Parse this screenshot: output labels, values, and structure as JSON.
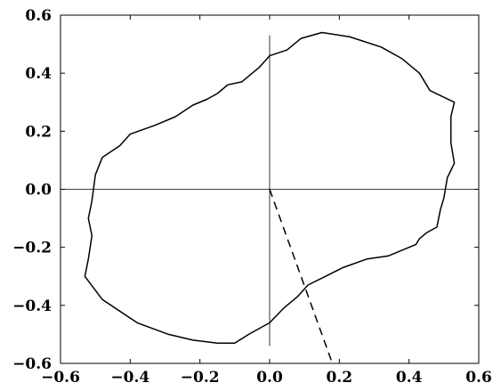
{
  "chart_data": {
    "type": "line",
    "title": "",
    "xlabel": "",
    "ylabel": "",
    "xlim": [
      -0.6,
      0.6
    ],
    "ylim": [
      -0.6,
      0.6
    ],
    "x_ticks": [
      -0.6,
      -0.4,
      -0.2,
      0.0,
      0.2,
      0.4,
      0.6
    ],
    "y_ticks": [
      -0.6,
      -0.4,
      -0.2,
      0.0,
      0.2,
      0.4,
      0.6
    ],
    "x_tick_labels": [
      "−0.6",
      "−0.4",
      "−0.2",
      "0.0",
      "0.2",
      "0.4",
      "0.6"
    ],
    "y_tick_labels": [
      "−0.6",
      "−0.4",
      "−0.2",
      "0.0",
      "0.2",
      "0.4",
      "0.6"
    ],
    "grid": false,
    "legend": "none",
    "series": [
      {
        "style": "solid",
        "color": "#000000",
        "closed": true,
        "points": [
          [
            0.0,
            0.46
          ],
          [
            0.05,
            0.48
          ],
          [
            0.09,
            0.52
          ],
          [
            0.15,
            0.54
          ],
          [
            0.23,
            0.525
          ],
          [
            0.32,
            0.49
          ],
          [
            0.38,
            0.45
          ],
          [
            0.43,
            0.4
          ],
          [
            0.46,
            0.34
          ],
          [
            0.53,
            0.3
          ],
          [
            0.52,
            0.25
          ],
          [
            0.52,
            0.16
          ],
          [
            0.53,
            0.09
          ],
          [
            0.51,
            0.04
          ],
          [
            0.5,
            -0.03
          ],
          [
            0.49,
            -0.07
          ],
          [
            0.48,
            -0.13
          ],
          [
            0.45,
            -0.15
          ],
          [
            0.43,
            -0.17
          ],
          [
            0.42,
            -0.19
          ],
          [
            0.38,
            -0.21
          ],
          [
            0.34,
            -0.23
          ],
          [
            0.28,
            -0.24
          ],
          [
            0.21,
            -0.27
          ],
          [
            0.16,
            -0.3
          ],
          [
            0.11,
            -0.33
          ],
          [
            0.08,
            -0.37
          ],
          [
            0.04,
            -0.41
          ],
          [
            0.0,
            -0.46
          ],
          [
            -0.06,
            -0.5
          ],
          [
            -0.1,
            -0.53
          ],
          [
            -0.15,
            -0.53
          ],
          [
            -0.22,
            -0.52
          ],
          [
            -0.29,
            -0.5
          ],
          [
            -0.38,
            -0.46
          ],
          [
            -0.48,
            -0.38
          ],
          [
            -0.53,
            -0.3
          ],
          [
            -0.52,
            -0.24
          ],
          [
            -0.51,
            -0.16
          ],
          [
            -0.52,
            -0.1
          ],
          [
            -0.51,
            -0.04
          ],
          [
            -0.5,
            0.05
          ],
          [
            -0.48,
            0.11
          ],
          [
            -0.43,
            0.15
          ],
          [
            -0.4,
            0.19
          ],
          [
            -0.33,
            0.22
          ],
          [
            -0.27,
            0.25
          ],
          [
            -0.22,
            0.29
          ],
          [
            -0.18,
            0.31
          ],
          [
            -0.15,
            0.33
          ],
          [
            -0.12,
            0.36
          ],
          [
            -0.08,
            0.37
          ],
          [
            -0.05,
            0.4
          ],
          [
            -0.03,
            0.42
          ]
        ]
      },
      {
        "style": "solid",
        "color": "#000000",
        "points": [
          [
            0.0,
            0.53
          ],
          [
            0.0,
            -0.54
          ]
        ]
      },
      {
        "style": "solid",
        "color": "#000000",
        "points": [
          [
            -0.6,
            0.0
          ],
          [
            0.6,
            0.0
          ]
        ]
      },
      {
        "style": "dashed",
        "color": "#000000",
        "points": [
          [
            0.0,
            0.0
          ],
          [
            0.18,
            -0.6
          ]
        ]
      }
    ]
  }
}
